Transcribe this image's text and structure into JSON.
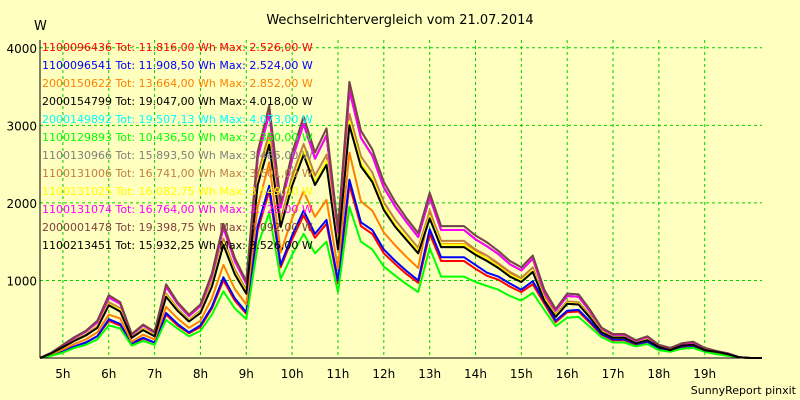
{
  "chart_data": {
    "type": "line",
    "title": "Wechselrichtervergleich vom 21.07.2014",
    "ylabel": "W",
    "footer": "SunnyReport pinxit",
    "ylim": [
      0,
      4100
    ],
    "xlim": [
      4.5,
      20.25
    ],
    "yticks": [
      1000,
      2000,
      3000,
      4000
    ],
    "xticks": [
      {
        "v": 5,
        "label": "5h"
      },
      {
        "v": 6,
        "label": "6h"
      },
      {
        "v": 7,
        "label": "7h"
      },
      {
        "v": 8,
        "label": "8h"
      },
      {
        "v": 9,
        "label": "9h"
      },
      {
        "v": 10,
        "label": "10h"
      },
      {
        "v": 11,
        "label": "11h"
      },
      {
        "v": 12,
        "label": "12h"
      },
      {
        "v": 13,
        "label": "13h"
      },
      {
        "v": 14,
        "label": "14h"
      },
      {
        "v": 15,
        "label": "15h"
      },
      {
        "v": 16,
        "label": "16h"
      },
      {
        "v": 17,
        "label": "17h"
      },
      {
        "v": 18,
        "label": "18h"
      },
      {
        "v": 19,
        "label": "19h"
      }
    ],
    "grid": true,
    "legend_position": "top-left",
    "x": [
      4.5,
      4.75,
      5,
      5.25,
      5.5,
      5.75,
      6,
      6.25,
      6.5,
      6.75,
      7,
      7.25,
      7.5,
      7.75,
      8,
      8.25,
      8.5,
      8.75,
      9,
      9.25,
      9.5,
      9.75,
      10,
      10.25,
      10.5,
      10.75,
      11,
      11.25,
      11.5,
      11.75,
      12,
      12.25,
      12.5,
      12.75,
      13,
      13.25,
      13.5,
      13.75,
      14,
      14.25,
      14.5,
      14.75,
      15,
      15.25,
      15.5,
      15.75,
      16,
      16.25,
      16.5,
      16.75,
      17,
      17.25,
      17.5,
      17.75,
      18,
      18.25,
      18.5,
      18.75,
      19,
      19.25,
      19.5,
      19.75,
      20,
      20.25
    ],
    "series": [
      {
        "name": "1100096436",
        "legend": "1100096436 Tot: 11.816,00 Wh Max: 2.526,00 W",
        "color": "#ff0000",
        "values": [
          0,
          40,
          90,
          150,
          200,
          280,
          480,
          420,
          180,
          250,
          200,
          560,
          420,
          320,
          400,
          640,
          1000,
          740,
          570,
          1650,
          2150,
          1170,
          1530,
          1840,
          1550,
          1730,
          960,
          2230,
          1700,
          1600,
          1350,
          1210,
          1080,
          970,
          1600,
          1250,
          1250,
          1250,
          1150,
          1060,
          1010,
          920,
          850,
          950,
          700,
          460,
          590,
          600,
          450,
          300,
          230,
          230,
          170,
          200,
          110,
          90,
          140,
          150,
          90,
          60,
          40,
          10,
          0,
          0
        ]
      },
      {
        "name": "1100096541",
        "legend": "1100096541 Tot: 11.908,50 Wh Max: 2.524,00 W",
        "color": "#0000ff",
        "values": [
          0,
          40,
          90,
          150,
          200,
          280,
          500,
          440,
          190,
          260,
          200,
          580,
          440,
          330,
          420,
          660,
          1040,
          770,
          590,
          1700,
          2220,
          1200,
          1580,
          1900,
          1600,
          1780,
          1000,
          2300,
          1750,
          1650,
          1400,
          1250,
          1120,
          1000,
          1660,
          1300,
          1300,
          1300,
          1200,
          1100,
          1050,
          960,
          880,
          990,
          730,
          480,
          610,
          620,
          470,
          310,
          240,
          240,
          180,
          210,
          120,
          100,
          150,
          160,
          100,
          70,
          40,
          10,
          0,
          0
        ]
      },
      {
        "name": "2000150622",
        "legend": "2000150622 Tot: 13.664,00 Wh Max: 2.852,00 W",
        "color": "#ff8000",
        "values": [
          0,
          50,
          110,
          180,
          240,
          330,
          560,
          510,
          210,
          300,
          240,
          660,
          510,
          390,
          480,
          770,
          1200,
          890,
          690,
          1950,
          2520,
          1360,
          1800,
          2150,
          1820,
          2040,
          1150,
          2650,
          2020,
          1900,
          1620,
          1450,
          1300,
          1160,
          1910,
          1470,
          1470,
          1470,
          1380,
          1280,
          1210,
          1100,
          1010,
          1120,
          830,
          550,
          700,
          710,
          540,
          350,
          270,
          270,
          200,
          240,
          140,
          110,
          170,
          180,
          110,
          80,
          50,
          10,
          0,
          0
        ]
      },
      {
        "name": "2000154799",
        "legend": "2000154799 Tot: 19.047,00 Wh Max: 4.018,00 W",
        "color": "#000000",
        "values": [
          0,
          70,
          160,
          260,
          340,
          460,
          780,
          700,
          300,
          420,
          330,
          920,
          700,
          540,
          670,
          1060,
          1680,
          1250,
          960,
          2580,
          3150,
          1940,
          2560,
          3020,
          2570,
          2870,
          1620,
          3450,
          2840,
          2610,
          2200,
          1950,
          1750,
          1560,
          2070,
          1650,
          1650,
          1650,
          1530,
          1440,
          1340,
          1210,
          1130,
          1280,
          850,
          610,
          800,
          790,
          600,
          380,
          300,
          300,
          220,
          270,
          160,
          120,
          180,
          200,
          120,
          90,
          60,
          10,
          0,
          0
        ]
      },
      {
        "name": "2000149892",
        "legend": "2000149892 Tot: 19.507,13 Wh Max: 4.073,00 W",
        "color": "#00ffff",
        "values": [
          0,
          70,
          170,
          270,
          350,
          480,
          810,
          720,
          310,
          430,
          340,
          950,
          720,
          560,
          690,
          1090,
          1730,
          1290,
          990,
          2660,
          3250,
          2000,
          2640,
          3110,
          2650,
          2960,
          1670,
          3560,
          2930,
          2690,
          2270,
          2010,
          1800,
          1610,
          2130,
          1700,
          1700,
          1700,
          1580,
          1490,
          1380,
          1250,
          1170,
          1320,
          880,
          630,
          830,
          820,
          620,
          390,
          310,
          310,
          230,
          280,
          170,
          130,
          190,
          210,
          130,
          90,
          60,
          10,
          0,
          0
        ]
      },
      {
        "name": "1100129893",
        "legend": "1100129893 Tot: 10.436,50 Wh Max: 2.350,00 W",
        "color": "#00ff00",
        "values": [
          0,
          30,
          70,
          130,
          170,
          240,
          420,
          380,
          160,
          220,
          170,
          490,
          380,
          280,
          350,
          560,
          860,
          640,
          500,
          1450,
          1870,
          1020,
          1330,
          1600,
          1350,
          1500,
          850,
          1950,
          1500,
          1400,
          1180,
          1060,
          950,
          850,
          1420,
          1050,
          1050,
          1050,
          980,
          930,
          880,
          800,
          740,
          840,
          620,
          410,
          520,
          530,
          400,
          270,
          200,
          200,
          150,
          180,
          100,
          80,
          120,
          130,
          80,
          50,
          30,
          10,
          0,
          0
        ]
      },
      {
        "name": "1100130966",
        "legend": "1100130966 Tot: 15.893,50 Wh Max: 3.485,00 W",
        "color": "#808080",
        "values": [
          0,
          60,
          140,
          220,
          290,
          390,
          680,
          600,
          260,
          360,
          280,
          790,
          610,
          470,
          580,
          920,
          1460,
          1080,
          830,
          2230,
          2750,
          1690,
          2220,
          2620,
          2230,
          2490,
          1400,
          3000,
          2470,
          2270,
          1910,
          1690,
          1520,
          1350,
          1800,
          1430,
          1430,
          1430,
          1330,
          1250,
          1160,
          1050,
          980,
          1110,
          740,
          530,
          700,
          690,
          520,
          330,
          260,
          260,
          190,
          230,
          140,
          100,
          160,
          170,
          100,
          80,
          50,
          10,
          0,
          0
        ]
      },
      {
        "name": "1100131006",
        "legend": "1100131006 Tot: 16.741,00 Wh Max: 3.601,00 W",
        "color": "#c08040",
        "values": [
          0,
          60,
          140,
          230,
          300,
          410,
          720,
          640,
          270,
          380,
          300,
          830,
          640,
          490,
          610,
          970,
          1540,
          1140,
          880,
          2360,
          2900,
          1780,
          2340,
          2760,
          2350,
          2620,
          1480,
          3150,
          2600,
          2390,
          2010,
          1780,
          1600,
          1420,
          1890,
          1510,
          1510,
          1510,
          1400,
          1320,
          1220,
          1110,
          1030,
          1170,
          780,
          560,
          730,
          720,
          550,
          350,
          270,
          270,
          200,
          250,
          150,
          110,
          170,
          180,
          110,
          80,
          50,
          10,
          0,
          0
        ]
      },
      {
        "name": "1100131025",
        "legend": "1100131025 Tot: 16.082,75 Wh Max: 3.549,00 W",
        "color": "#ffff00",
        "values": [
          0,
          60,
          140,
          220,
          290,
          400,
          690,
          620,
          260,
          370,
          290,
          810,
          620,
          480,
          590,
          940,
          1490,
          1100,
          850,
          2280,
          2800,
          1720,
          2260,
          2670,
          2270,
          2540,
          1430,
          3050,
          2520,
          2310,
          1950,
          1720,
          1550,
          1380,
          1830,
          1460,
          1460,
          1460,
          1360,
          1280,
          1180,
          1070,
          1000,
          1130,
          760,
          540,
          710,
          700,
          530,
          340,
          260,
          260,
          190,
          240,
          140,
          110,
          160,
          170,
          110,
          80,
          50,
          10,
          0,
          0
        ]
      },
      {
        "name": "1100131074",
        "legend": "1100131074 Tot: 16.764,00 Wh Max: 3.728,00 W",
        "color": "#ff00ff",
        "values": [
          0,
          70,
          160,
          260,
          340,
          460,
          780,
          700,
          300,
          420,
          330,
          920,
          700,
          540,
          670,
          1060,
          1680,
          1250,
          960,
          2580,
          3150,
          1940,
          2560,
          3020,
          2570,
          2870,
          1620,
          3450,
          2840,
          2610,
          2200,
          1950,
          1750,
          1560,
          2070,
          1650,
          1650,
          1650,
          1530,
          1440,
          1340,
          1210,
          1130,
          1280,
          850,
          610,
          800,
          790,
          600,
          380,
          300,
          300,
          220,
          270,
          160,
          120,
          180,
          200,
          120,
          90,
          60,
          10,
          0,
          0
        ]
      },
      {
        "name": "2000001478",
        "legend": "2000001478 Tot: 19.398,75 Wh Max: 4.092,00 W",
        "color": "#804040",
        "values": [
          0,
          70,
          170,
          270,
          350,
          480,
          810,
          720,
          310,
          430,
          340,
          950,
          720,
          560,
          690,
          1090,
          1730,
          1290,
          990,
          2660,
          3250,
          2000,
          2640,
          3110,
          2650,
          2960,
          1670,
          3560,
          2930,
          2690,
          2270,
          2010,
          1800,
          1610,
          2130,
          1700,
          1700,
          1700,
          1580,
          1490,
          1380,
          1250,
          1170,
          1320,
          880,
          630,
          830,
          820,
          620,
          390,
          310,
          310,
          230,
          280,
          170,
          130,
          190,
          210,
          130,
          90,
          60,
          10,
          0,
          0
        ]
      },
      {
        "name": "1100213451",
        "legend": "1100213451 Tot: 15.932,25 Wh Max: 3.526,00 W",
        "color": "#000000",
        "values": [
          0,
          60,
          140,
          220,
          290,
          390,
          680,
          600,
          260,
          360,
          280,
          790,
          610,
          470,
          580,
          920,
          1460,
          1080,
          830,
          2230,
          2750,
          1690,
          2220,
          2620,
          2230,
          2490,
          1400,
          3000,
          2470,
          2270,
          1910,
          1690,
          1520,
          1350,
          1800,
          1430,
          1430,
          1430,
          1330,
          1250,
          1160,
          1050,
          980,
          1110,
          740,
          530,
          700,
          690,
          520,
          330,
          260,
          260,
          190,
          230,
          140,
          100,
          160,
          170,
          100,
          80,
          50,
          10,
          0,
          0
        ]
      }
    ]
  }
}
